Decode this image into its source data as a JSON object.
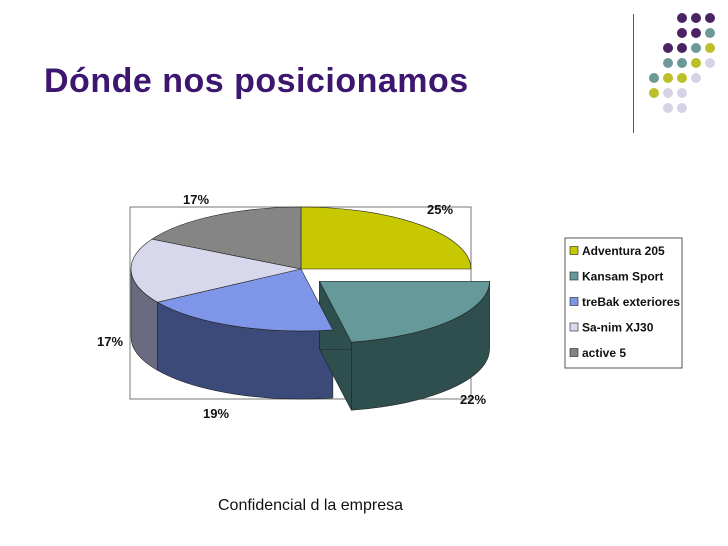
{
  "slide": {
    "title": "Dónde nos posicionamos",
    "footer": "Confidencial d la empresa"
  },
  "decoration": {
    "dot_colors": [
      "#4a2363",
      "#6d9a98",
      "#bcbf2a",
      "#d4d4e6"
    ]
  },
  "chart_data": {
    "type": "pie",
    "style": "3d-exploded",
    "categories": [
      "Adventura 205",
      "Kansam Sport",
      "treBak exteriores",
      "Sa-nim XJ30",
      "active 5"
    ],
    "values": [
      25,
      22,
      19,
      17,
      17
    ],
    "value_labels": [
      "25%",
      "22%",
      "19%",
      "17%",
      "17%"
    ],
    "colors": [
      "#c8c800",
      "#669999",
      "#7f96e8",
      "#d8d8ec",
      "#858585"
    ],
    "side_colors": [
      "#7a7a00",
      "#2f4f4f",
      "#3c4a7a",
      "#6a6a80",
      "#555555"
    ],
    "exploded": "Kansam Sport",
    "legend": "right"
  }
}
